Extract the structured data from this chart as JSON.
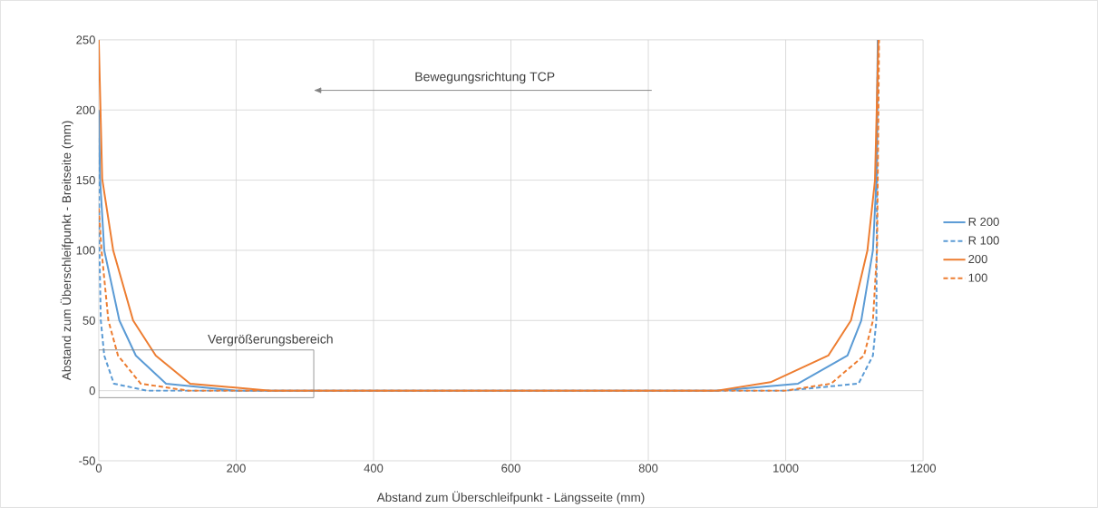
{
  "chart_data": {
    "type": "line",
    "xlabel": "Abstand zum Überschleifpunkt - Längsseite  (mm)",
    "ylabel": "Abstand zum Überschleifpunkt - Breitseite (mm)",
    "annotations": [
      "Bewegungsrichtung TCP",
      "Vergrößerungsbereich"
    ],
    "xlim": [
      0,
      1200
    ],
    "ylim": [
      -50,
      250
    ],
    "xticks": [
      0,
      200,
      400,
      600,
      800,
      1000,
      1200
    ],
    "yticks": [
      -50,
      0,
      50,
      100,
      150,
      200,
      250
    ],
    "grid": true,
    "legend": "right",
    "marker": "none",
    "series": [
      {
        "name": "R 200",
        "color": "#5b9bd5",
        "line_style": "solid",
        "x": [
          0,
          2,
          8,
          30,
          54,
          98,
          200,
          400,
          600,
          800,
          900,
          1018,
          1090,
          1110,
          1127,
          1132,
          1134
        ],
        "values": [
          200,
          150,
          100,
          50,
          25,
          5,
          0,
          0,
          0,
          0,
          0,
          5,
          25,
          50,
          100,
          150,
          250
        ]
      },
      {
        "name": "R 100",
        "color": "#5b9bd5",
        "line_style": "dashed",
        "x": [
          0,
          1,
          3,
          8,
          22,
          70,
          400,
          600,
          800,
          1000,
          1106,
          1127,
          1132,
          1134
        ],
        "values": [
          180,
          100,
          50,
          25,
          5,
          0,
          0,
          0,
          0,
          0,
          5,
          25,
          50,
          250
        ]
      },
      {
        "name": "200",
        "color": "#ed7d31",
        "line_style": "solid",
        "x": [
          0,
          5,
          21,
          50,
          83,
          133,
          250,
          400,
          600,
          800,
          900,
          978,
          1062,
          1095,
          1119,
          1130,
          1135
        ],
        "values": [
          250,
          151,
          100,
          50,
          25,
          5,
          0,
          0,
          0,
          0,
          0,
          6,
          25,
          50,
          100,
          150,
          250
        ]
      },
      {
        "name": "100",
        "color": "#ed7d31",
        "line_style": "dashed",
        "x": [
          0,
          4,
          14,
          28,
          61,
          130,
          400,
          600,
          800,
          1000,
          1066,
          1114,
          1127,
          1133,
          1136
        ],
        "values": [
          130,
          100,
          50,
          25,
          5,
          0,
          0,
          0,
          0,
          0,
          5,
          25,
          50,
          100,
          250
        ]
      }
    ]
  }
}
